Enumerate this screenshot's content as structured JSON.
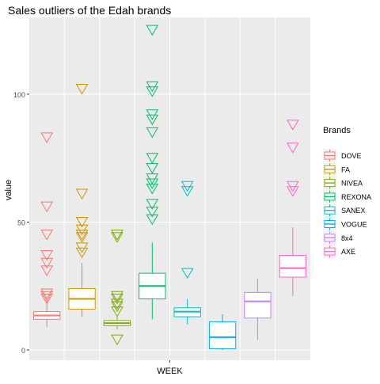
{
  "chart_data": {
    "type": "boxplot",
    "title": "Sales outliers of the Edah brands",
    "xlabel": "WEEK",
    "ylabel": "value",
    "ylim": [
      -4,
      130
    ],
    "yticks": [
      0,
      50,
      100
    ],
    "grid": true,
    "legend": {
      "title": "Brands",
      "position": "right"
    },
    "outlier_marker": "open-triangle-down",
    "series": [
      {
        "name": "DOVE",
        "color": "#F8766D",
        "whisker_low": 9,
        "q1": 12,
        "median": 13.5,
        "q3": 15,
        "whisker_high": 19,
        "outliers": [
          83,
          56,
          45,
          37,
          34,
          31,
          22,
          21,
          20
        ]
      },
      {
        "name": "FA",
        "color": "#CD9600",
        "whisker_low": 13,
        "q1": 16,
        "median": 20,
        "q3": 24,
        "whisker_high": 34,
        "outliers": [
          102,
          61,
          50,
          47,
          45,
          44,
          40,
          38
        ]
      },
      {
        "name": "NIVEA",
        "color": "#7CAE00",
        "whisker_low": 8,
        "q1": 9.5,
        "median": 10.5,
        "q3": 11.5,
        "whisker_high": 13,
        "outliers": [
          45,
          44,
          21,
          20,
          18,
          17,
          15,
          4
        ]
      },
      {
        "name": "REXONA",
        "color": "#00BE67",
        "whisker_low": 12,
        "q1": 20,
        "median": 25,
        "q3": 30,
        "whisker_high": 42,
        "outliers": [
          125,
          103,
          101,
          92,
          90,
          85,
          75,
          71,
          67,
          65,
          63,
          57,
          54,
          51
        ]
      },
      {
        "name": "SANEX",
        "color": "#00BFC4",
        "whisker_low": 10,
        "q1": 13,
        "median": 15,
        "q3": 16.5,
        "whisker_high": 20,
        "outliers": [
          64,
          62,
          30
        ]
      },
      {
        "name": "VOGUE",
        "color": "#00A9FF",
        "whisker_low": 0,
        "q1": 0.5,
        "median": 5,
        "q3": 11,
        "whisker_high": 14,
        "outliers": []
      },
      {
        "name": "8x4",
        "color": "#C77CFF",
        "whisker_low": 4,
        "q1": 12.5,
        "median": 19,
        "q3": 22.5,
        "whisker_high": 28,
        "outliers": []
      },
      {
        "name": "AXE",
        "color": "#FF61CC",
        "whisker_low": 21,
        "q1": 28.5,
        "median": 32,
        "q3": 37,
        "whisker_high": 48,
        "outliers": [
          88,
          79,
          64,
          62
        ]
      }
    ]
  }
}
